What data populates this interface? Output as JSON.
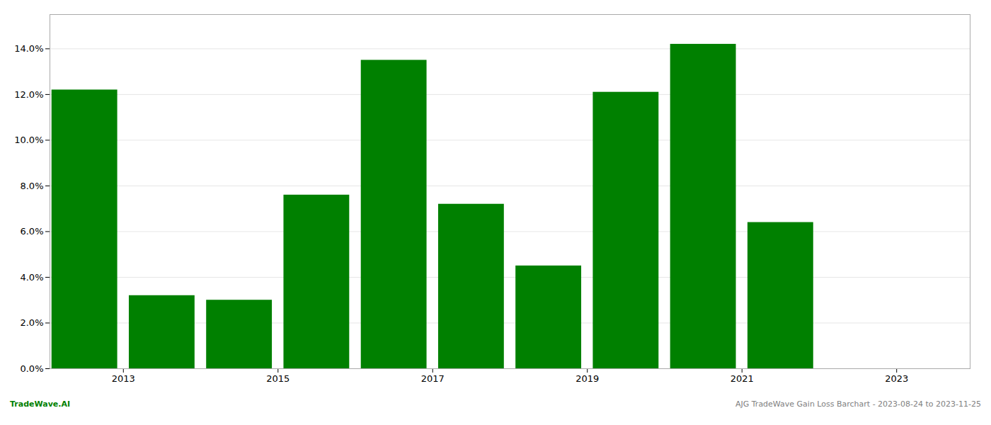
{
  "chart_data": {
    "type": "bar",
    "title": "AJG TradeWave Gain Loss Barchart - 2023-08-24 to 2023-11-25",
    "annotations": [
      "TradeWave.AI"
    ],
    "x": [
      2013,
      2014,
      2015,
      2016,
      2017,
      2018,
      2019,
      2020,
      2021,
      2022
    ],
    "values": [
      0.122,
      0.032,
      0.03,
      0.076,
      0.135,
      0.072,
      0.045,
      0.121,
      0.142,
      0.064
    ],
    "color": "#008000",
    "xlim": [
      2012.55,
      2024.45
    ],
    "xticks": [
      {
        "value": 2013.5,
        "label": "2013"
      },
      {
        "value": 2015.5,
        "label": "2015"
      },
      {
        "value": 2017.5,
        "label": "2017"
      },
      {
        "value": 2019.5,
        "label": "2019"
      },
      {
        "value": 2021.5,
        "label": "2021"
      },
      {
        "value": 2023.5,
        "label": "2023"
      }
    ],
    "ylim": [
      0,
      0.155
    ],
    "yticks": [
      {
        "value": 0.0,
        "label": "0.0%"
      },
      {
        "value": 0.02,
        "label": "2.0%"
      },
      {
        "value": 0.04,
        "label": "4.0%"
      },
      {
        "value": 0.06,
        "label": "6.0%"
      },
      {
        "value": 0.08,
        "label": "8.0%"
      },
      {
        "value": 0.1,
        "label": "10.0%"
      },
      {
        "value": 0.12,
        "label": "12.0%"
      },
      {
        "value": 0.14,
        "label": "14.0%"
      }
    ],
    "grid": true
  }
}
